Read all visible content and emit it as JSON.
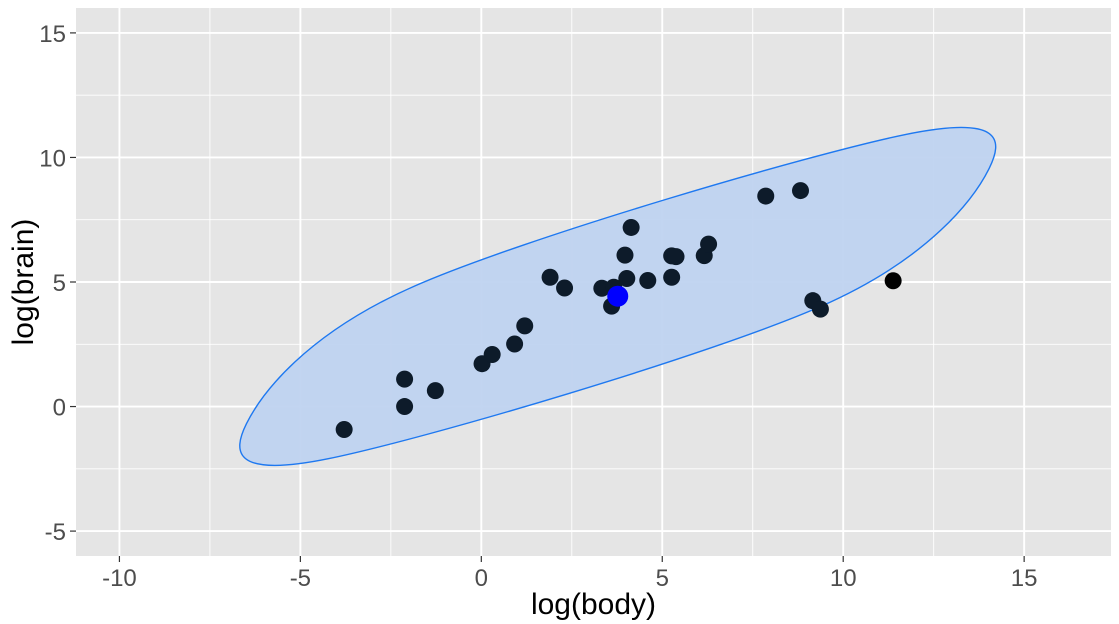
{
  "chart_data": {
    "type": "scatter",
    "title": "",
    "xlabel": "log(body)",
    "ylabel": "log(brain)",
    "xlim": [
      -11.2,
      17.4
    ],
    "ylim": [
      -6.0,
      16.0
    ],
    "x_ticks": [
      -10,
      -5,
      0,
      5,
      10,
      15
    ],
    "x_tick_labels": [
      "-10",
      "-5",
      "0",
      "5",
      "10",
      "15"
    ],
    "y_ticks": [
      -5,
      0,
      5,
      10,
      15
    ],
    "y_tick_labels": [
      "-5",
      "0",
      "5",
      "10",
      "15"
    ],
    "grid": true,
    "colors": {
      "panel": "#e5e5e5",
      "grid": "#ffffff",
      "points": "#0d1b2a",
      "outlier": "#000000",
      "center": "#0000ff",
      "ellipse_fill": "#bfd3f0",
      "ellipse_stroke": "#1e78f0"
    },
    "series": [
      {
        "values": [
          {
            "x": -3.79,
            "y": -0.92
          },
          {
            "x": -2.12,
            "y": 1.1
          },
          {
            "x": -2.12,
            "y": 0.0
          },
          {
            "x": -1.27,
            "y": 0.64
          },
          {
            "x": 0.02,
            "y": 1.72
          },
          {
            "x": 0.3,
            "y": 2.09
          },
          {
            "x": 0.92,
            "y": 2.51
          },
          {
            "x": 1.2,
            "y": 3.24
          },
          {
            "x": 1.9,
            "y": 5.19
          },
          {
            "x": 2.3,
            "y": 4.76
          },
          {
            "x": 3.33,
            "y": 4.75
          },
          {
            "x": 3.6,
            "y": 4.03
          },
          {
            "x": 3.66,
            "y": 4.79
          },
          {
            "x": 3.97,
            "y": 6.08
          },
          {
            "x": 4.02,
            "y": 5.14
          },
          {
            "x": 4.14,
            "y": 7.19
          },
          {
            "x": 4.6,
            "y": 5.06
          },
          {
            "x": 5.26,
            "y": 6.05
          },
          {
            "x": 5.26,
            "y": 5.19
          },
          {
            "x": 5.38,
            "y": 6.02
          },
          {
            "x": 6.16,
            "y": 6.06
          },
          {
            "x": 6.28,
            "y": 6.52
          },
          {
            "x": 7.86,
            "y": 8.45
          },
          {
            "x": 8.82,
            "y": 8.67
          },
          {
            "x": 9.16,
            "y": 4.25
          },
          {
            "x": 9.37,
            "y": 3.91
          }
        ]
      }
    ],
    "outliers": [
      {
        "x": 11.38,
        "y": 5.05
      }
    ],
    "center": {
      "x": 3.77,
      "y": 4.43
    },
    "ellipse": {
      "points": [
        {
          "x": 11.75,
          "y": 10.93
        },
        {
          "x": 14.03,
          "y": 9.55
        },
        {
          "x": 9.38,
          "y": 4.02
        },
        {
          "x": -4.21,
          "y": -2.09
        },
        {
          "x": -6.49,
          "y": -0.69
        },
        {
          "x": -1.84,
          "y": 4.84
        }
      ]
    }
  }
}
